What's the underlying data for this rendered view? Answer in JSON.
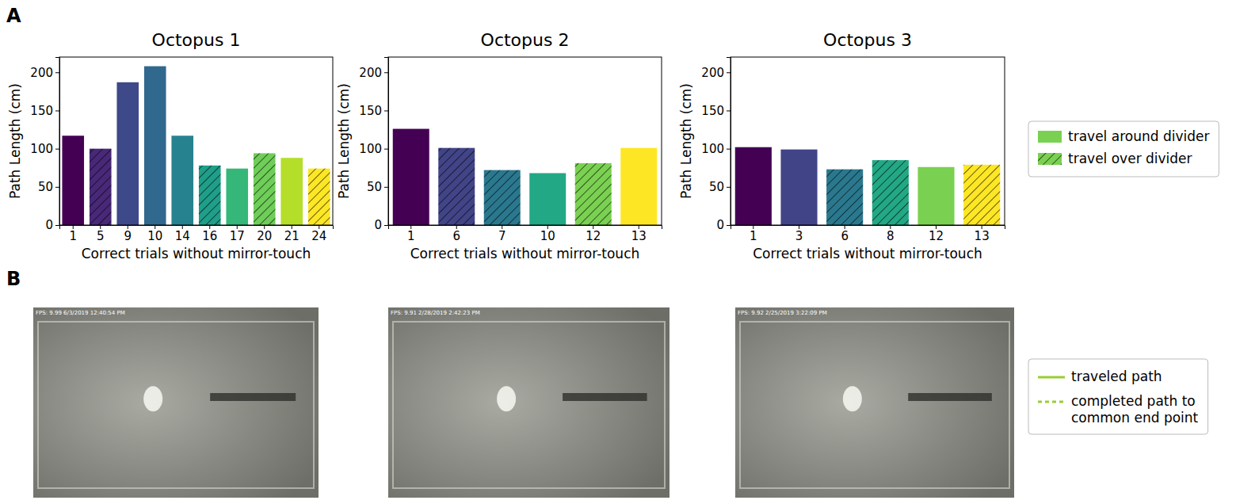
{
  "chart_data": [
    {
      "type": "bar",
      "title": "Octopus 1",
      "x_label": "Correct trials without mirror-touch",
      "y_label": "Path Length (cm)",
      "categories": [
        "1",
        "5",
        "9",
        "10",
        "14",
        "16",
        "17",
        "20",
        "21",
        "24"
      ],
      "series": [
        {
          "name": "travel around divider",
          "color": "#7ad151",
          "line_style": "solid",
          "values": [
            117,
            null,
            187,
            208,
            117,
            null,
            74,
            null,
            88,
            null
          ]
        },
        {
          "name": "travel over divider",
          "color": "#7ad151",
          "line_style": "hatched",
          "values": [
            null,
            100,
            null,
            null,
            null,
            78,
            null,
            94,
            null,
            74
          ]
        }
      ],
      "colors": [
        "#440154",
        "#482878",
        "#3e4989",
        "#31688e",
        "#26828e",
        "#1f9e89",
        "#35b779",
        "#6ece58",
        "#b5de2b",
        "#fde725"
      ],
      "ylim": [
        0,
        220
      ],
      "yticks": [
        0,
        50,
        100,
        150,
        200
      ],
      "legend": "right"
    },
    {
      "type": "bar",
      "title": "Octopus 2",
      "x_label": "Correct trials without mirror-touch",
      "y_label": "Path Length (cm)",
      "categories": [
        "1",
        "6",
        "7",
        "10",
        "12",
        "13"
      ],
      "series": [
        {
          "line_style": "solid",
          "values": [
            126,
            null,
            null,
            68,
            null,
            101
          ]
        },
        {
          "line_style": "hatched",
          "values": [
            null,
            101,
            72,
            null,
            81,
            null
          ]
        }
      ],
      "colors": [
        "#440154",
        "#414487",
        "#2a788e",
        "#22a884",
        "#7ad151",
        "#fde725"
      ],
      "ylim": [
        0,
        220
      ],
      "yticks": [
        0,
        50,
        100,
        150,
        200
      ]
    },
    {
      "type": "bar",
      "title": "Octopus 3",
      "x_label": "Correct trials without mirror-touch",
      "y_label": "Path Length (cm)",
      "categories": [
        "1",
        "3",
        "6",
        "8",
        "12",
        "13"
      ],
      "series": [
        {
          "line_style": "solid",
          "values": [
            102,
            99,
            null,
            null,
            76,
            null
          ]
        },
        {
          "line_style": "hatched",
          "values": [
            null,
            null,
            73,
            85,
            null,
            79
          ]
        }
      ],
      "colors": [
        "#440154",
        "#414487",
        "#2a788e",
        "#22a884",
        "#7ad151",
        "#fde725"
      ],
      "ylim": [
        0,
        220
      ],
      "yticks": [
        0,
        50,
        100,
        150,
        200
      ]
    }
  ],
  "panel_labels": [
    "A",
    "B"
  ],
  "photo_captions": [
    "FPS: 9.99 6/3/2019 12:40:54 PM",
    "FPS: 9.91 2/28/2019 2:42:23 PM",
    "FPS: 9.92 2/25/2019 3:22:09 PM"
  ],
  "photo_legend": {
    "color": "#9acd32",
    "entries": [
      {
        "label": "traveled path",
        "line_style": "solid"
      },
      {
        "label": "completed path to common end point",
        "line_style": "dashed"
      }
    ]
  }
}
